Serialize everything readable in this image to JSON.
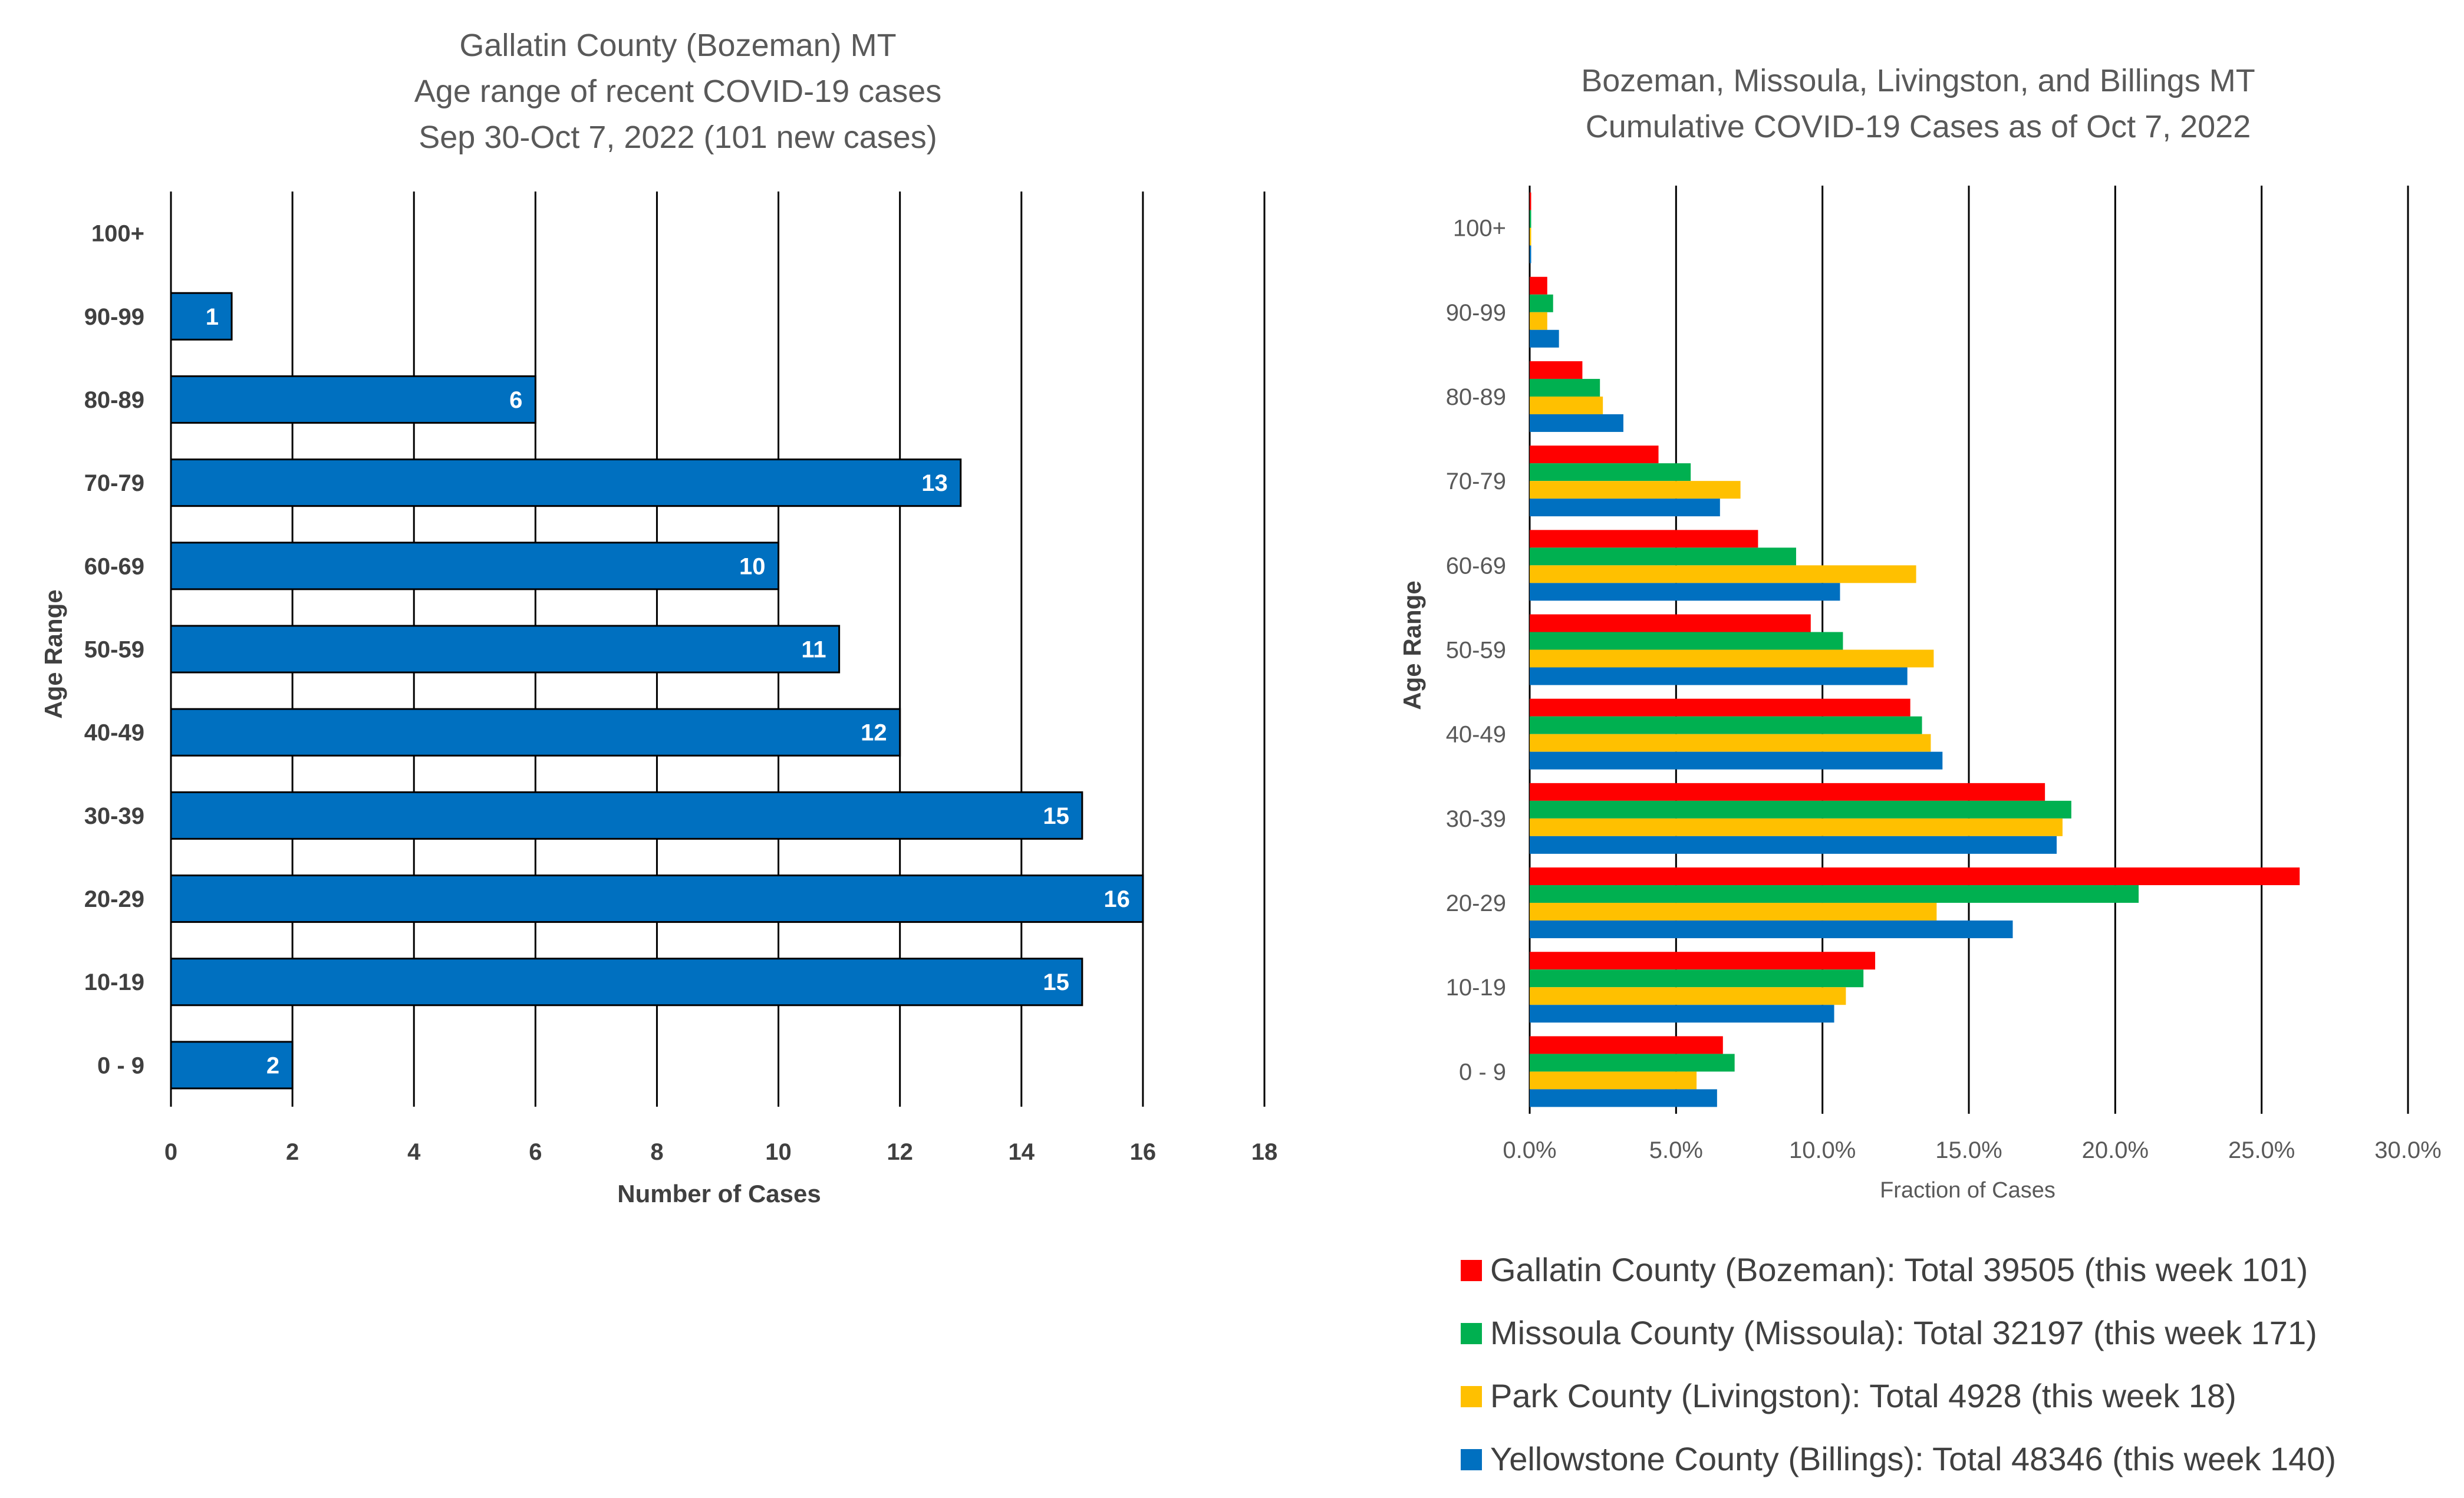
{
  "chart_data": [
    {
      "type": "bar",
      "orientation": "horizontal",
      "title": [
        "Gallatin County (Bozeman) MT",
        "Age range of recent COVID-19 cases",
        "Sep 30-Oct 7, 2022 (101 new cases)"
      ],
      "xlabel": "Number of Cases",
      "ylabel": "Age Range",
      "categories": [
        "0 - 9",
        "10-19",
        "20-29",
        "30-39",
        "40-49",
        "50-59",
        "60-69",
        "70-79",
        "80-89",
        "90-99",
        "100+"
      ],
      "values": [
        2,
        15,
        16,
        15,
        12,
        11,
        10,
        13,
        6,
        1,
        0
      ],
      "data_labels": [
        "2",
        "15",
        "16",
        "15",
        "12",
        "11",
        "10",
        "13",
        "6",
        "1",
        ""
      ],
      "xlim": [
        0,
        18
      ],
      "xticks": [
        "0",
        "2",
        "4",
        "6",
        "8",
        "10",
        "12",
        "14",
        "16",
        "18"
      ],
      "grid": "vertical",
      "colors": {
        "bar": "#0070C0",
        "bar_edge": "#000000",
        "grid": "#000000"
      }
    },
    {
      "type": "bar",
      "orientation": "horizontal",
      "title": [
        "Bozeman, Missoula, Livingston, and Billings MT",
        "Cumulative COVID-19 Cases as of Oct 7, 2022"
      ],
      "xlabel": "Fraction of Cases",
      "ylabel": "Age Range",
      "categories": [
        "0 - 9",
        "10-19",
        "20-29",
        "30-39",
        "40-49",
        "50-59",
        "60-69",
        "70-79",
        "80-89",
        "90-99",
        "100+"
      ],
      "xlim": [
        0,
        30
      ],
      "x_unit": "percent",
      "xticks": [
        "0.0%",
        "5.0%",
        "10.0%",
        "15.0%",
        "20.0%",
        "25.0%",
        "30.0%"
      ],
      "grid": "vertical",
      "legend_position": "bottom",
      "series": [
        {
          "name": "Gallatin County (Bozeman): Total 39505 (this week 101)",
          "color": "#FF0000",
          "values": [
            6.6,
            11.8,
            26.3,
            17.6,
            13.0,
            9.6,
            7.8,
            4.4,
            1.8,
            0.6,
            0.05
          ]
        },
        {
          "name": "Missoula County (Missoula): Total 32197 (this week 171)",
          "color": "#00B050",
          "values": [
            7.0,
            11.4,
            20.8,
            18.5,
            13.4,
            10.7,
            9.1,
            5.5,
            2.4,
            0.8,
            0.05
          ]
        },
        {
          "name": "Park County (Livingston): Total 4928 (this week 18)",
          "color": "#FFC000",
          "values": [
            5.7,
            10.8,
            13.9,
            18.2,
            13.7,
            13.8,
            13.2,
            7.2,
            2.5,
            0.6,
            0.05
          ]
        },
        {
          "name": "Yellowstone County (Billings): Total 48346 (this week 140)",
          "color": "#0070C0",
          "values": [
            6.4,
            10.4,
            16.5,
            18.0,
            14.1,
            12.9,
            10.6,
            6.5,
            3.2,
            1.0,
            0.05
          ]
        }
      ]
    }
  ]
}
